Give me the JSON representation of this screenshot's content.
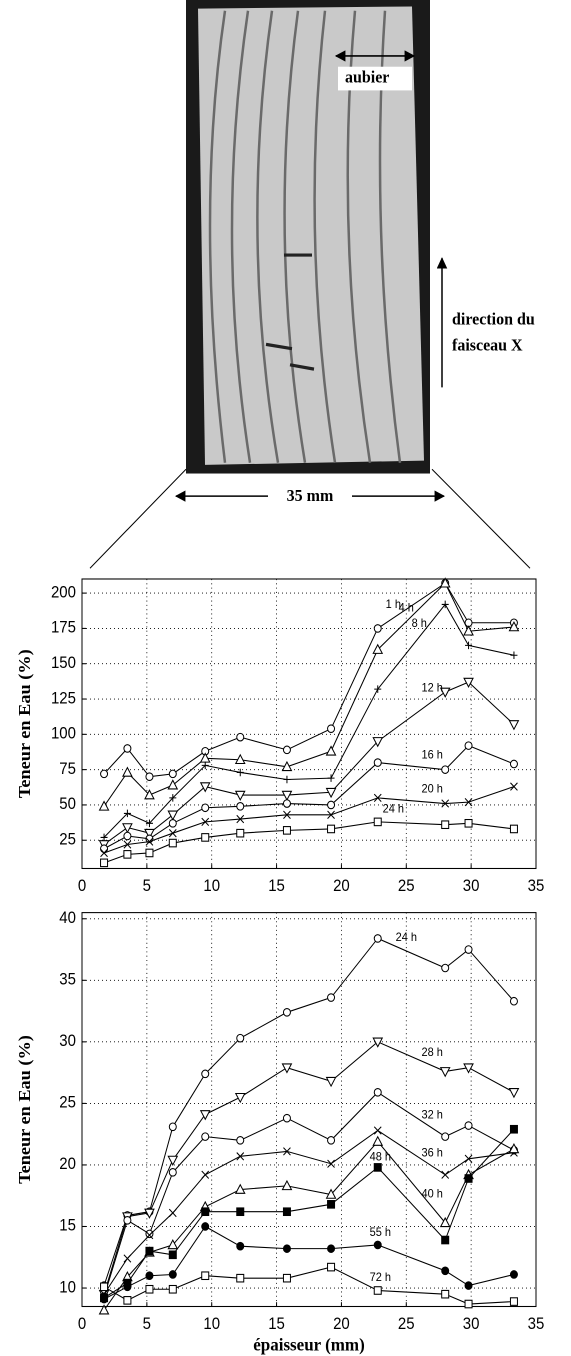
{
  "figure": {
    "sapwood_label": "aubier",
    "beam_label_line1": "direction du",
    "beam_label_line2": "faisceau X",
    "width_label": "35 mm"
  },
  "chart_data": [
    {
      "type": "line",
      "ylabel": "Teneur  en Eau (%)",
      "x": [
        1.7,
        3.5,
        5.2,
        7,
        9.5,
        12.2,
        15.8,
        19.2,
        22.8,
        28,
        29.8,
        33.3
      ],
      "xlim": [
        0,
        35
      ],
      "xticks": [
        0,
        5,
        10,
        15,
        20,
        25,
        30,
        35
      ],
      "ylim": [
        5,
        210
      ],
      "yticks": [
        25,
        50,
        75,
        100,
        125,
        150,
        175,
        200
      ],
      "grid": true,
      "series": [
        {
          "name": "1 h",
          "color": "#000000",
          "marker": "circle",
          "values": [
            72,
            90,
            70,
            72,
            88,
            98,
            89,
            104,
            175,
            207,
            179,
            179
          ]
        },
        {
          "name": "4 h",
          "color": "#000000",
          "marker": "triangle",
          "values": [
            49,
            73,
            57,
            64,
            83,
            82,
            77,
            88,
            160,
            207,
            173,
            176
          ]
        },
        {
          "name": "8 h",
          "color": "#000000",
          "marker": "plus",
          "values": [
            27,
            44,
            37,
            55,
            78,
            73,
            68,
            69,
            132,
            192,
            163,
            156
          ]
        },
        {
          "name": "12 h",
          "color": "#000000",
          "marker": "down-triangle",
          "values": [
            22,
            34,
            30,
            43,
            63,
            57,
            57,
            59,
            95,
            130,
            137,
            107
          ]
        },
        {
          "name": "16 h",
          "color": "#000000",
          "marker": "circle",
          "values": [
            19,
            28,
            26,
            37,
            48,
            49,
            51,
            50,
            80,
            75,
            92,
            79
          ]
        },
        {
          "name": "20 h",
          "color": "#000000",
          "marker": "x",
          "values": [
            16,
            22,
            24,
            30,
            38,
            40,
            43,
            43,
            55,
            51,
            52,
            63
          ]
        },
        {
          "name": "24 h",
          "color": "#000000",
          "marker": "square",
          "values": [
            9,
            15,
            16,
            23,
            27,
            30,
            32,
            33,
            38,
            36,
            37,
            33
          ]
        }
      ]
    },
    {
      "type": "line",
      "ylabel": "Teneur  en Eau (%)",
      "xlabel": "épaisseur (mm)",
      "x": [
        1.7,
        3.5,
        5.2,
        7,
        9.5,
        12.2,
        15.8,
        19.2,
        22.8,
        28,
        29.8,
        33.3
      ],
      "xlim": [
        0,
        35
      ],
      "xticks": [
        0,
        5,
        10,
        15,
        20,
        25,
        30,
        35
      ],
      "ylim": [
        8.5,
        40.5
      ],
      "yticks": [
        10,
        15,
        20,
        25,
        30,
        35,
        40
      ],
      "grid": true,
      "series": [
        {
          "name": "24 h",
          "color": "#000000",
          "marker": "circle",
          "values": [
            10.2,
            15.9,
            16.2,
            23.1,
            27.4,
            30.3,
            32.4,
            33.6,
            38.4,
            36,
            37.5,
            33.3
          ]
        },
        {
          "name": "28 h",
          "color": "#000000",
          "marker": "down-triangle",
          "values": [
            9.5,
            15.8,
            16.1,
            20.4,
            24.1,
            25.5,
            27.9,
            26.8,
            30,
            27.6,
            27.9,
            25.9
          ]
        },
        {
          "name": "32 h",
          "color": "#000000",
          "marker": "circle",
          "values": [
            9.3,
            15.5,
            14.4,
            19.4,
            22.3,
            22,
            23.8,
            22,
            25.9,
            22.3,
            23.2,
            21.2
          ]
        },
        {
          "name": "36 h",
          "color": "#000000",
          "marker": "x",
          "values": [
            9.5,
            12.4,
            14.3,
            16.1,
            19.2,
            20.7,
            21.1,
            20.1,
            22.8,
            19.2,
            20.5,
            21
          ]
        },
        {
          "name": "40 h",
          "color": "#000000",
          "marker": "triangle",
          "values": [
            8.2,
            10.9,
            12.9,
            13.5,
            16.6,
            18,
            18.3,
            17.6,
            21.9,
            15.3,
            19.2,
            21.3
          ]
        },
        {
          "name": "48 h",
          "color": "#000000",
          "marker": "filled-square",
          "values": [
            9.2,
            10.4,
            13,
            12.7,
            16.2,
            16.2,
            16.2,
            16.8,
            19.8,
            13.9,
            18.9,
            22.9
          ]
        },
        {
          "name": "55 h",
          "color": "#000000",
          "marker": "filled-circle",
          "values": [
            9.1,
            10.1,
            11,
            11.1,
            15,
            13.4,
            13.2,
            13.2,
            13.5,
            11.4,
            10.2,
            11.1
          ]
        },
        {
          "name": "72 h",
          "color": "#000000",
          "marker": "square",
          "values": [
            10.1,
            9,
            9.9,
            9.9,
            11,
            10.8,
            10.8,
            11.7,
            9.8,
            9.5,
            8.7,
            8.9
          ]
        }
      ]
    }
  ]
}
